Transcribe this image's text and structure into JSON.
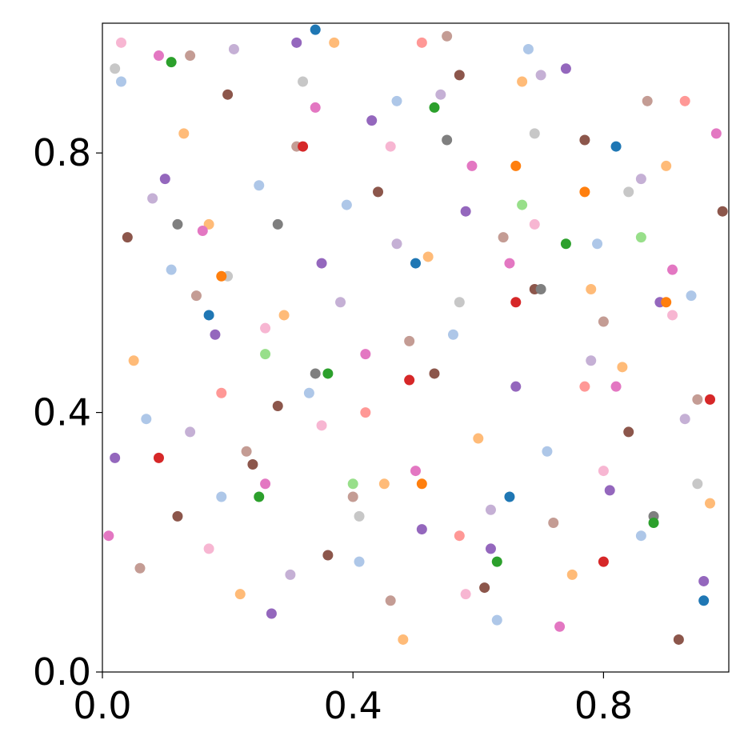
{
  "chart_data": {
    "type": "scatter",
    "xlim": [
      0,
      1
    ],
    "ylim": [
      0,
      1
    ],
    "xticks": [
      {
        "value": 0,
        "label": "0.0"
      },
      0.4,
      0.8
    ],
    "yticks": [
      {
        "value": 0,
        "label": "0.0"
      },
      0.4,
      0.8
    ],
    "series": [
      {
        "color": "#aec7e8",
        "x": [
          0.03,
          0.11,
          0.19,
          0.25,
          0.33,
          0.41,
          0.47,
          0.56,
          0.63,
          0.71,
          0.79,
          0.86,
          0.94,
          0.07,
          0.39,
          0.68
        ],
        "values": [
          0.91,
          0.62,
          0.27,
          0.75,
          0.43,
          0.17,
          0.88,
          0.52,
          0.08,
          0.34,
          0.66,
          0.21,
          0.58,
          0.39,
          0.72,
          0.96
        ]
      },
      {
        "color": "#ffbb78",
        "x": [
          0.05,
          0.13,
          0.22,
          0.29,
          0.37,
          0.45,
          0.52,
          0.6,
          0.67,
          0.75,
          0.83,
          0.9,
          0.97,
          0.17,
          0.48,
          0.78
        ],
        "values": [
          0.48,
          0.83,
          0.12,
          0.55,
          0.97,
          0.29,
          0.64,
          0.36,
          0.91,
          0.15,
          0.47,
          0.78,
          0.26,
          0.69,
          0.05,
          0.59
        ]
      },
      {
        "color": "#9467bd",
        "x": [
          0.02,
          0.1,
          0.18,
          0.27,
          0.35,
          0.43,
          0.51,
          0.58,
          0.66,
          0.74,
          0.81,
          0.89,
          0.96,
          0.31,
          0.62
        ],
        "values": [
          0.33,
          0.76,
          0.52,
          0.09,
          0.63,
          0.85,
          0.22,
          0.71,
          0.44,
          0.93,
          0.28,
          0.57,
          0.14,
          0.97,
          0.19
        ]
      },
      {
        "color": "#8c564b",
        "x": [
          0.04,
          0.12,
          0.2,
          0.28,
          0.36,
          0.44,
          0.53,
          0.61,
          0.69,
          0.77,
          0.84,
          0.92,
          0.99,
          0.24,
          0.57
        ],
        "values": [
          0.67,
          0.24,
          0.89,
          0.41,
          0.18,
          0.74,
          0.46,
          0.13,
          0.59,
          0.82,
          0.37,
          0.05,
          0.71,
          0.32,
          0.92
        ]
      },
      {
        "color": "#c49c94",
        "x": [
          0.06,
          0.15,
          0.23,
          0.31,
          0.4,
          0.49,
          0.55,
          0.64,
          0.72,
          0.8,
          0.87,
          0.95,
          0.14,
          0.46
        ],
        "values": [
          0.16,
          0.58,
          0.34,
          0.81,
          0.27,
          0.51,
          0.98,
          0.67,
          0.23,
          0.54,
          0.88,
          0.42,
          0.95,
          0.11
        ]
      },
      {
        "color": "#e377c2",
        "x": [
          0.01,
          0.09,
          0.16,
          0.26,
          0.34,
          0.42,
          0.5,
          0.59,
          0.65,
          0.73,
          0.82,
          0.91,
          0.98
        ],
        "values": [
          0.21,
          0.95,
          0.68,
          0.29,
          0.87,
          0.49,
          0.31,
          0.78,
          0.63,
          0.07,
          0.44,
          0.62,
          0.83
        ]
      },
      {
        "color": "#c5b0d5",
        "x": [
          0.08,
          0.14,
          0.21,
          0.3,
          0.38,
          0.47,
          0.54,
          0.62,
          0.7,
          0.78,
          0.86,
          0.93
        ],
        "values": [
          0.73,
          0.37,
          0.96,
          0.15,
          0.57,
          0.66,
          0.89,
          0.25,
          0.92,
          0.48,
          0.76,
          0.39
        ]
      },
      {
        "color": "#f7b6d2",
        "x": [
          0.03,
          0.17,
          0.26,
          0.35,
          0.46,
          0.58,
          0.69,
          0.8,
          0.91
        ],
        "values": [
          0.97,
          0.19,
          0.53,
          0.38,
          0.81,
          0.12,
          0.69,
          0.31,
          0.55
        ]
      },
      {
        "color": "#c7c7c7",
        "x": [
          0.02,
          0.2,
          0.32,
          0.41,
          0.57,
          0.69,
          0.84,
          0.95
        ],
        "values": [
          0.93,
          0.61,
          0.91,
          0.24,
          0.57,
          0.83,
          0.74,
          0.29
        ]
      },
      {
        "color": "#7f7f7f",
        "x": [
          0.12,
          0.34,
          0.55,
          0.7,
          0.88,
          0.28
        ],
        "values": [
          0.69,
          0.46,
          0.82,
          0.59,
          0.24,
          0.69
        ]
      },
      {
        "color": "#2ca02c",
        "x": [
          0.11,
          0.36,
          0.53,
          0.74,
          0.88,
          0.63,
          0.25
        ],
        "values": [
          0.94,
          0.46,
          0.87,
          0.66,
          0.23,
          0.17,
          0.27
        ]
      },
      {
        "color": "#d62728",
        "x": [
          0.09,
          0.32,
          0.49,
          0.66,
          0.8,
          0.97
        ],
        "values": [
          0.33,
          0.81,
          0.45,
          0.57,
          0.17,
          0.42
        ]
      },
      {
        "color": "#ff9896",
        "x": [
          0.19,
          0.42,
          0.57,
          0.77,
          0.93,
          0.51
        ],
        "values": [
          0.43,
          0.4,
          0.21,
          0.44,
          0.88,
          0.97
        ]
      },
      {
        "color": "#1f77b4",
        "x": [
          0.17,
          0.34,
          0.5,
          0.65,
          0.82,
          0.96
        ],
        "values": [
          0.55,
          0.99,
          0.63,
          0.27,
          0.81,
          0.11
        ]
      },
      {
        "color": "#ff7f0e",
        "x": [
          0.19,
          0.51,
          0.66,
          0.77,
          0.9
        ],
        "values": [
          0.61,
          0.29,
          0.78,
          0.74,
          0.57
        ]
      },
      {
        "color": "#98df8a",
        "x": [
          0.26,
          0.4,
          0.67,
          0.86
        ],
        "values": [
          0.49,
          0.29,
          0.72,
          0.67
        ]
      }
    ]
  }
}
